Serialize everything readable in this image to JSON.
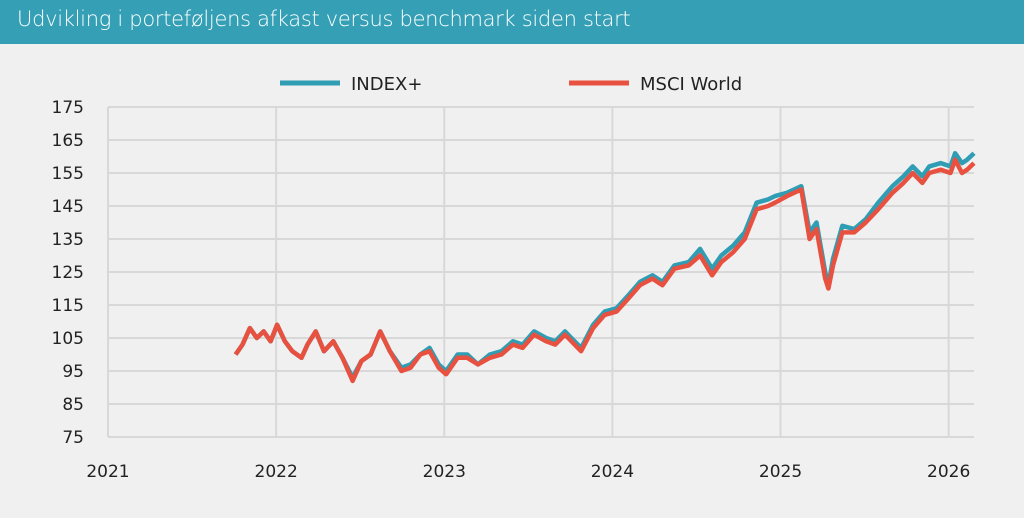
{
  "header": {
    "title": "Udvikling i porteføljens afkast versus benchmark siden start"
  },
  "chart_data": {
    "type": "line",
    "title": "Udvikling i porteføljens afkast versus benchmark siden start",
    "xlabel": "",
    "ylabel": "",
    "xlim": [
      "2021-01-01",
      "2026-02-25"
    ],
    "ylim": [
      75,
      175
    ],
    "x_ticks": [
      "2021",
      "2022",
      "2023",
      "2024",
      "2025",
      "2026"
    ],
    "y_ticks": [
      175,
      165,
      155,
      145,
      135,
      125,
      115,
      105,
      95,
      85,
      75
    ],
    "grid": true,
    "legend_position": "top-center",
    "colors": {
      "INDEX+": "#2f9db3",
      "MSCI World": "#e8513f",
      "header": "#35a0b5"
    },
    "x": [
      "2021-10-05",
      "2021-10-20",
      "2021-11-05",
      "2021-11-20",
      "2021-12-05",
      "2021-12-20",
      "2022-01-03",
      "2022-01-20",
      "2022-02-05",
      "2022-02-25",
      "2022-03-10",
      "2022-03-28",
      "2022-04-15",
      "2022-05-05",
      "2022-05-25",
      "2022-06-16",
      "2022-07-05",
      "2022-07-25",
      "2022-08-15",
      "2022-09-05",
      "2022-09-30",
      "2022-10-20",
      "2022-11-10",
      "2022-11-30",
      "2022-12-20",
      "2023-01-05",
      "2023-01-30",
      "2023-02-20",
      "2023-03-15",
      "2023-04-10",
      "2023-05-05",
      "2023-05-30",
      "2023-06-20",
      "2023-07-15",
      "2023-08-10",
      "2023-08-30",
      "2023-09-20",
      "2023-10-25",
      "2023-11-20",
      "2023-12-15",
      "2024-01-10",
      "2024-02-05",
      "2024-03-01",
      "2024-03-28",
      "2024-04-19",
      "2024-05-15",
      "2024-06-15",
      "2024-07-10",
      "2024-08-05",
      "2024-08-25",
      "2024-09-20",
      "2024-10-15",
      "2024-11-10",
      "2024-12-05",
      "2024-12-20",
      "2025-01-15",
      "2025-02-15",
      "2025-03-05",
      "2025-03-20",
      "2025-04-08",
      "2025-04-15",
      "2025-04-25",
      "2025-05-15",
      "2025-06-10",
      "2025-07-05",
      "2025-08-01",
      "2025-09-01",
      "2025-09-25",
      "2025-10-15",
      "2025-11-05",
      "2025-11-20",
      "2025-12-15",
      "2026-01-05",
      "2026-01-15",
      "2026-01-30",
      "2026-02-10",
      "2026-02-25"
    ],
    "series": [
      {
        "name": "INDEX+",
        "values": [
          100,
          103,
          108,
          105,
          107,
          104,
          109,
          104,
          101,
          99,
          103,
          107,
          101,
          104,
          99,
          93,
          98,
          100,
          107,
          101,
          96,
          97,
          100,
          102,
          97,
          95,
          100,
          100,
          97,
          100,
          101,
          104,
          103,
          107,
          105,
          104,
          107,
          102,
          109,
          113,
          114,
          118,
          122,
          124,
          122,
          127,
          128,
          132,
          126,
          130,
          133,
          137,
          146,
          147,
          148,
          149,
          151,
          137,
          140,
          125,
          121,
          129,
          139,
          138,
          141,
          146,
          151,
          154,
          157,
          154,
          157,
          158,
          157,
          161,
          158,
          159,
          161
        ]
      },
      {
        "name": "MSCI World",
        "values": [
          100,
          103,
          108,
          105,
          107,
          104,
          109,
          104,
          101,
          99,
          103,
          107,
          101,
          104,
          99,
          92,
          98,
          100,
          107,
          101,
          95,
          96,
          100,
          101,
          96,
          94,
          99,
          99,
          97,
          99,
          100,
          103,
          102,
          106,
          104,
          103,
          106,
          101,
          108,
          112,
          113,
          117,
          121,
          123,
          121,
          126,
          127,
          130,
          124,
          128,
          131,
          135,
          144,
          145,
          146,
          148,
          150,
          135,
          138,
          123,
          120,
          127,
          137,
          137,
          140,
          144,
          149,
          152,
          155,
          152,
          155,
          156,
          155,
          159,
          155,
          156,
          158
        ]
      }
    ]
  }
}
